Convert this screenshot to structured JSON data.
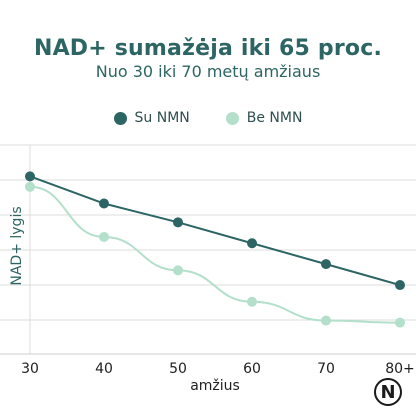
{
  "chart_data": {
    "type": "line",
    "title": "NAD+ sumažėja iki 65 proc.",
    "subtitle": "Nuo 30 iki 70 metų amžiaus",
    "xlabel": "amžius",
    "ylabel": "NAD+ lygis",
    "x": [
      "30",
      "40",
      "50",
      "60",
      "70",
      "80+"
    ],
    "ylim": [
      0,
      100
    ],
    "grid": true,
    "legend_position": "top-center",
    "series": [
      {
        "name": "Su NMN",
        "color": "#2c6563",
        "values": [
          85,
          72,
          63,
          53,
          43,
          33
        ]
      },
      {
        "name": "Be NMN",
        "color": "#b3dfcb",
        "values": [
          80,
          56,
          40,
          25,
          16,
          15
        ]
      }
    ]
  },
  "logo": {
    "letter": "N"
  }
}
